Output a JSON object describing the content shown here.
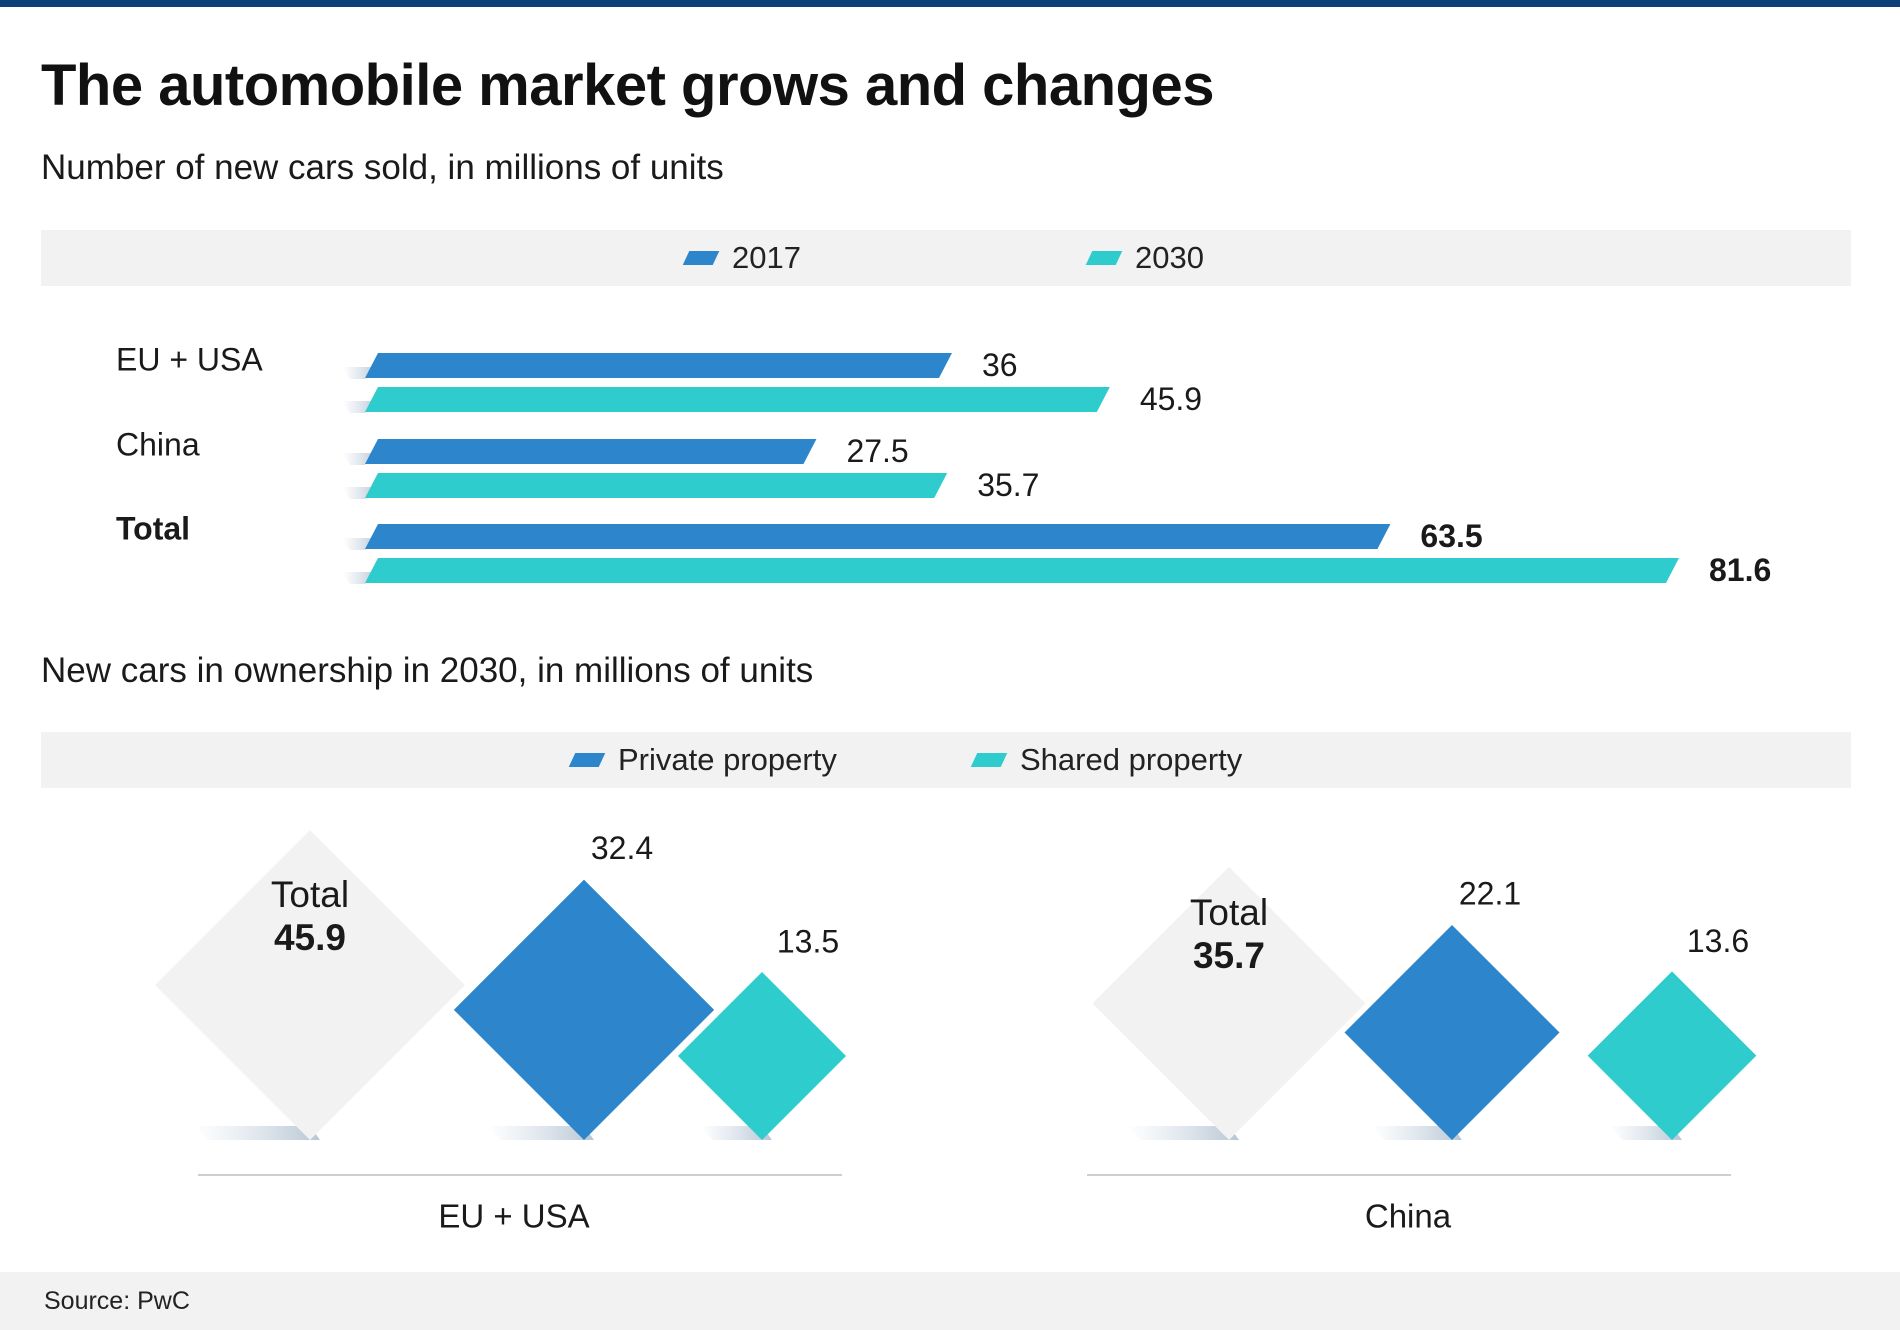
{
  "header": {
    "title": "The automobile market grows and changes",
    "subtitle_sales": "Number of new cars sold, in millions of units",
    "subtitle_ownership": "New cars in ownership  in 2030, in millions of units"
  },
  "legend_sales": {
    "items": [
      "2017",
      "2030"
    ]
  },
  "legend_ownership": {
    "items": [
      "Private property",
      "Shared property"
    ]
  },
  "colors": {
    "blue": "#2d86cc",
    "teal": "#2ecccc",
    "gray_diamond": "#f2f2f2",
    "band": "#f2f2f2",
    "topbar": "#0b3f77"
  },
  "source": "Source: PwC",
  "chart_data": [
    {
      "type": "bar",
      "orientation": "horizontal",
      "title": "Number of new cars sold, in millions of units",
      "categories": [
        "EU + USA",
        "China",
        "Total"
      ],
      "series": [
        {
          "name": "2017",
          "values": [
            36,
            27.5,
            63.5
          ],
          "labels": [
            "36",
            "27.5",
            "63.5"
          ]
        },
        {
          "name": "2030",
          "values": [
            45.9,
            35.7,
            81.6
          ],
          "labels": [
            "45.9",
            "35.7",
            "81.6"
          ]
        }
      ],
      "xlim": [
        0,
        81.6
      ],
      "bold_categories": [
        "Total"
      ],
      "grid": false,
      "legend": "top"
    },
    {
      "type": "diamond",
      "title": "New cars in ownership  in 2030, in millions of units",
      "groups": [
        {
          "name": "EU + USA",
          "total_label": "Total",
          "total": 45.9,
          "total_text": "45.9",
          "private": 32.4,
          "private_text": "32.4",
          "shared": 13.5,
          "shared_text": "13.5"
        },
        {
          "name": "China",
          "total_label": "Total",
          "total": 35.7,
          "total_text": "35.7",
          "private": 22.1,
          "private_text": "22.1",
          "shared": 13.6,
          "shared_text": "13.6"
        }
      ],
      "series": [
        "Private property",
        "Shared property"
      ],
      "legend": "top"
    }
  ]
}
